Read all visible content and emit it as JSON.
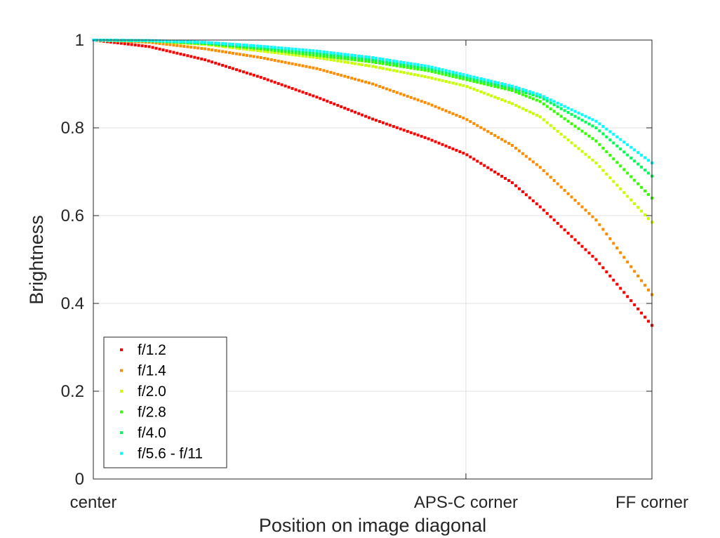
{
  "chart_data": {
    "type": "scatter",
    "title": "",
    "xlabel": "Position on image diagonal",
    "ylabel": "Brightness",
    "xlim": [
      0,
      1
    ],
    "ylim": [
      0,
      1
    ],
    "grid": true,
    "legend_position": "bottom-left",
    "x_ticks": [
      {
        "value": 0,
        "label": "center"
      },
      {
        "value": 0.667,
        "label": "APS-C corner"
      },
      {
        "value": 1,
        "label": "FF corner"
      }
    ],
    "y_ticks": [
      {
        "value": 0,
        "label": "0"
      },
      {
        "value": 0.2,
        "label": "0.2"
      },
      {
        "value": 0.4,
        "label": "0.4"
      },
      {
        "value": 0.6,
        "label": "0.6"
      },
      {
        "value": 0.8,
        "label": "0.8"
      },
      {
        "value": 1,
        "label": "1"
      }
    ],
    "x": [
      0,
      0.1,
      0.2,
      0.3,
      0.4,
      0.5,
      0.6,
      0.667,
      0.75,
      0.8,
      0.9,
      1.0
    ],
    "series": [
      {
        "name": "f/1.2",
        "color": "#ff0000",
        "values": [
          1.0,
          0.985,
          0.955,
          0.915,
          0.87,
          0.82,
          0.775,
          0.74,
          0.675,
          0.62,
          0.5,
          0.35
        ]
      },
      {
        "name": "f/1.4",
        "color": "#ff8c00",
        "values": [
          1.0,
          0.995,
          0.98,
          0.96,
          0.935,
          0.9,
          0.855,
          0.82,
          0.76,
          0.71,
          0.59,
          0.42
        ]
      },
      {
        "name": "f/2.0",
        "color": "#c8ff00",
        "values": [
          1.0,
          0.998,
          0.99,
          0.975,
          0.96,
          0.94,
          0.915,
          0.895,
          0.855,
          0.825,
          0.72,
          0.585
        ]
      },
      {
        "name": "f/2.8",
        "color": "#33ff00",
        "values": [
          1.0,
          0.998,
          0.992,
          0.98,
          0.965,
          0.95,
          0.93,
          0.91,
          0.885,
          0.86,
          0.77,
          0.64
        ]
      },
      {
        "name": "f/4.0",
        "color": "#00ff55",
        "values": [
          1.0,
          0.998,
          0.993,
          0.983,
          0.97,
          0.955,
          0.935,
          0.915,
          0.89,
          0.87,
          0.8,
          0.69
        ]
      },
      {
        "name": "f/5.6 - f/11",
        "color": "#00ffff",
        "values": [
          1.0,
          0.999,
          0.995,
          0.986,
          0.975,
          0.96,
          0.94,
          0.92,
          0.895,
          0.875,
          0.815,
          0.72
        ]
      }
    ]
  }
}
